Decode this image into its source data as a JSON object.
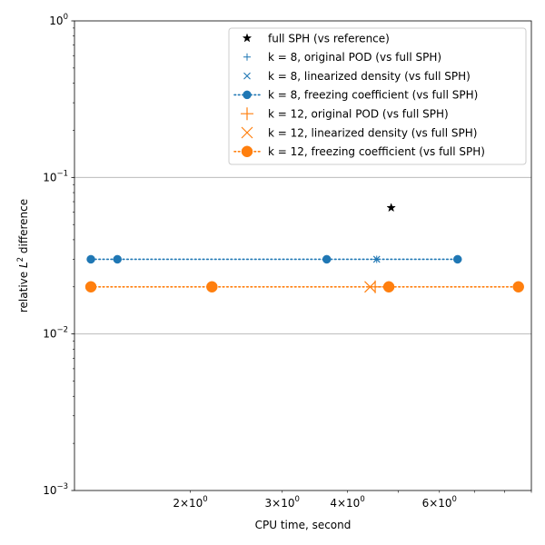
{
  "chart_data": {
    "type": "scatter",
    "title": "",
    "xlabel": "CPU time, second",
    "ylabel_prefix": "relative ",
    "ylabel_L": "L",
    "ylabel_sup": "2",
    "ylabel_suffix": " difference",
    "xscale": "log",
    "yscale": "log",
    "xlim": [
      1.2,
      9.0
    ],
    "ylim": [
      0.001,
      1.0
    ],
    "grid": "y-major",
    "legend_position": "top-right",
    "y_ticks": [
      {
        "value": 1.0,
        "base": "10",
        "exp": "0"
      },
      {
        "value": 0.1,
        "base": "10",
        "exp": "−1"
      },
      {
        "value": 0.01,
        "base": "10",
        "exp": "−2"
      },
      {
        "value": 0.001,
        "base": "10",
        "exp": "−3"
      }
    ],
    "x_ticks": [
      {
        "value": 2,
        "mant": "2",
        "base": "10",
        "exp": "0"
      },
      {
        "value": 3,
        "mant": "3",
        "base": "10",
        "exp": "0"
      },
      {
        "value": 4,
        "mant": "4",
        "base": "10",
        "exp": "0"
      },
      {
        "value": 6,
        "mant": "6",
        "base": "10",
        "exp": "0"
      }
    ],
    "x_minor_ticks": [
      5,
      7,
      8,
      9
    ],
    "series": [
      {
        "name": "full SPH (vs reference)",
        "marker": "star",
        "color": "#000000",
        "line": "none",
        "x": [
          4.85
        ],
        "y": [
          0.064
        ]
      },
      {
        "name": "k = 8, original POD (vs full SPH)",
        "marker": "plus",
        "color": "#1f77b4",
        "line": "none",
        "x": [
          4.55
        ],
        "y": [
          0.03
        ]
      },
      {
        "name": "k = 8, linearized density (vs full SPH)",
        "marker": "x",
        "color": "#1f77b4",
        "line": "none",
        "x": [
          4.55
        ],
        "y": [
          0.03
        ]
      },
      {
        "name": "k = 8, freezing coefficient (vs full SPH)",
        "marker": "circle",
        "color": "#1f77b4",
        "line": "dotted",
        "x": [
          1.29,
          1.45,
          3.65,
          6.5
        ],
        "y": [
          0.03,
          0.03,
          0.03,
          0.03
        ]
      },
      {
        "name": "k = 12, original POD (vs full SPH)",
        "marker": "plus-large",
        "color": "#ff7f0e",
        "line": "none",
        "x": [
          4.52
        ],
        "y": [
          0.02
        ]
      },
      {
        "name": "k = 12, linearized density (vs full SPH)",
        "marker": "x-large",
        "color": "#ff7f0e",
        "line": "none",
        "x": [
          4.42
        ],
        "y": [
          0.02
        ]
      },
      {
        "name": "k = 12, freezing coefficient (vs full SPH)",
        "marker": "circle-large",
        "color": "#ff7f0e",
        "line": "dotted",
        "x": [
          1.29,
          2.2,
          4.8,
          8.5
        ],
        "y": [
          0.02,
          0.02,
          0.02,
          0.02
        ]
      }
    ]
  }
}
